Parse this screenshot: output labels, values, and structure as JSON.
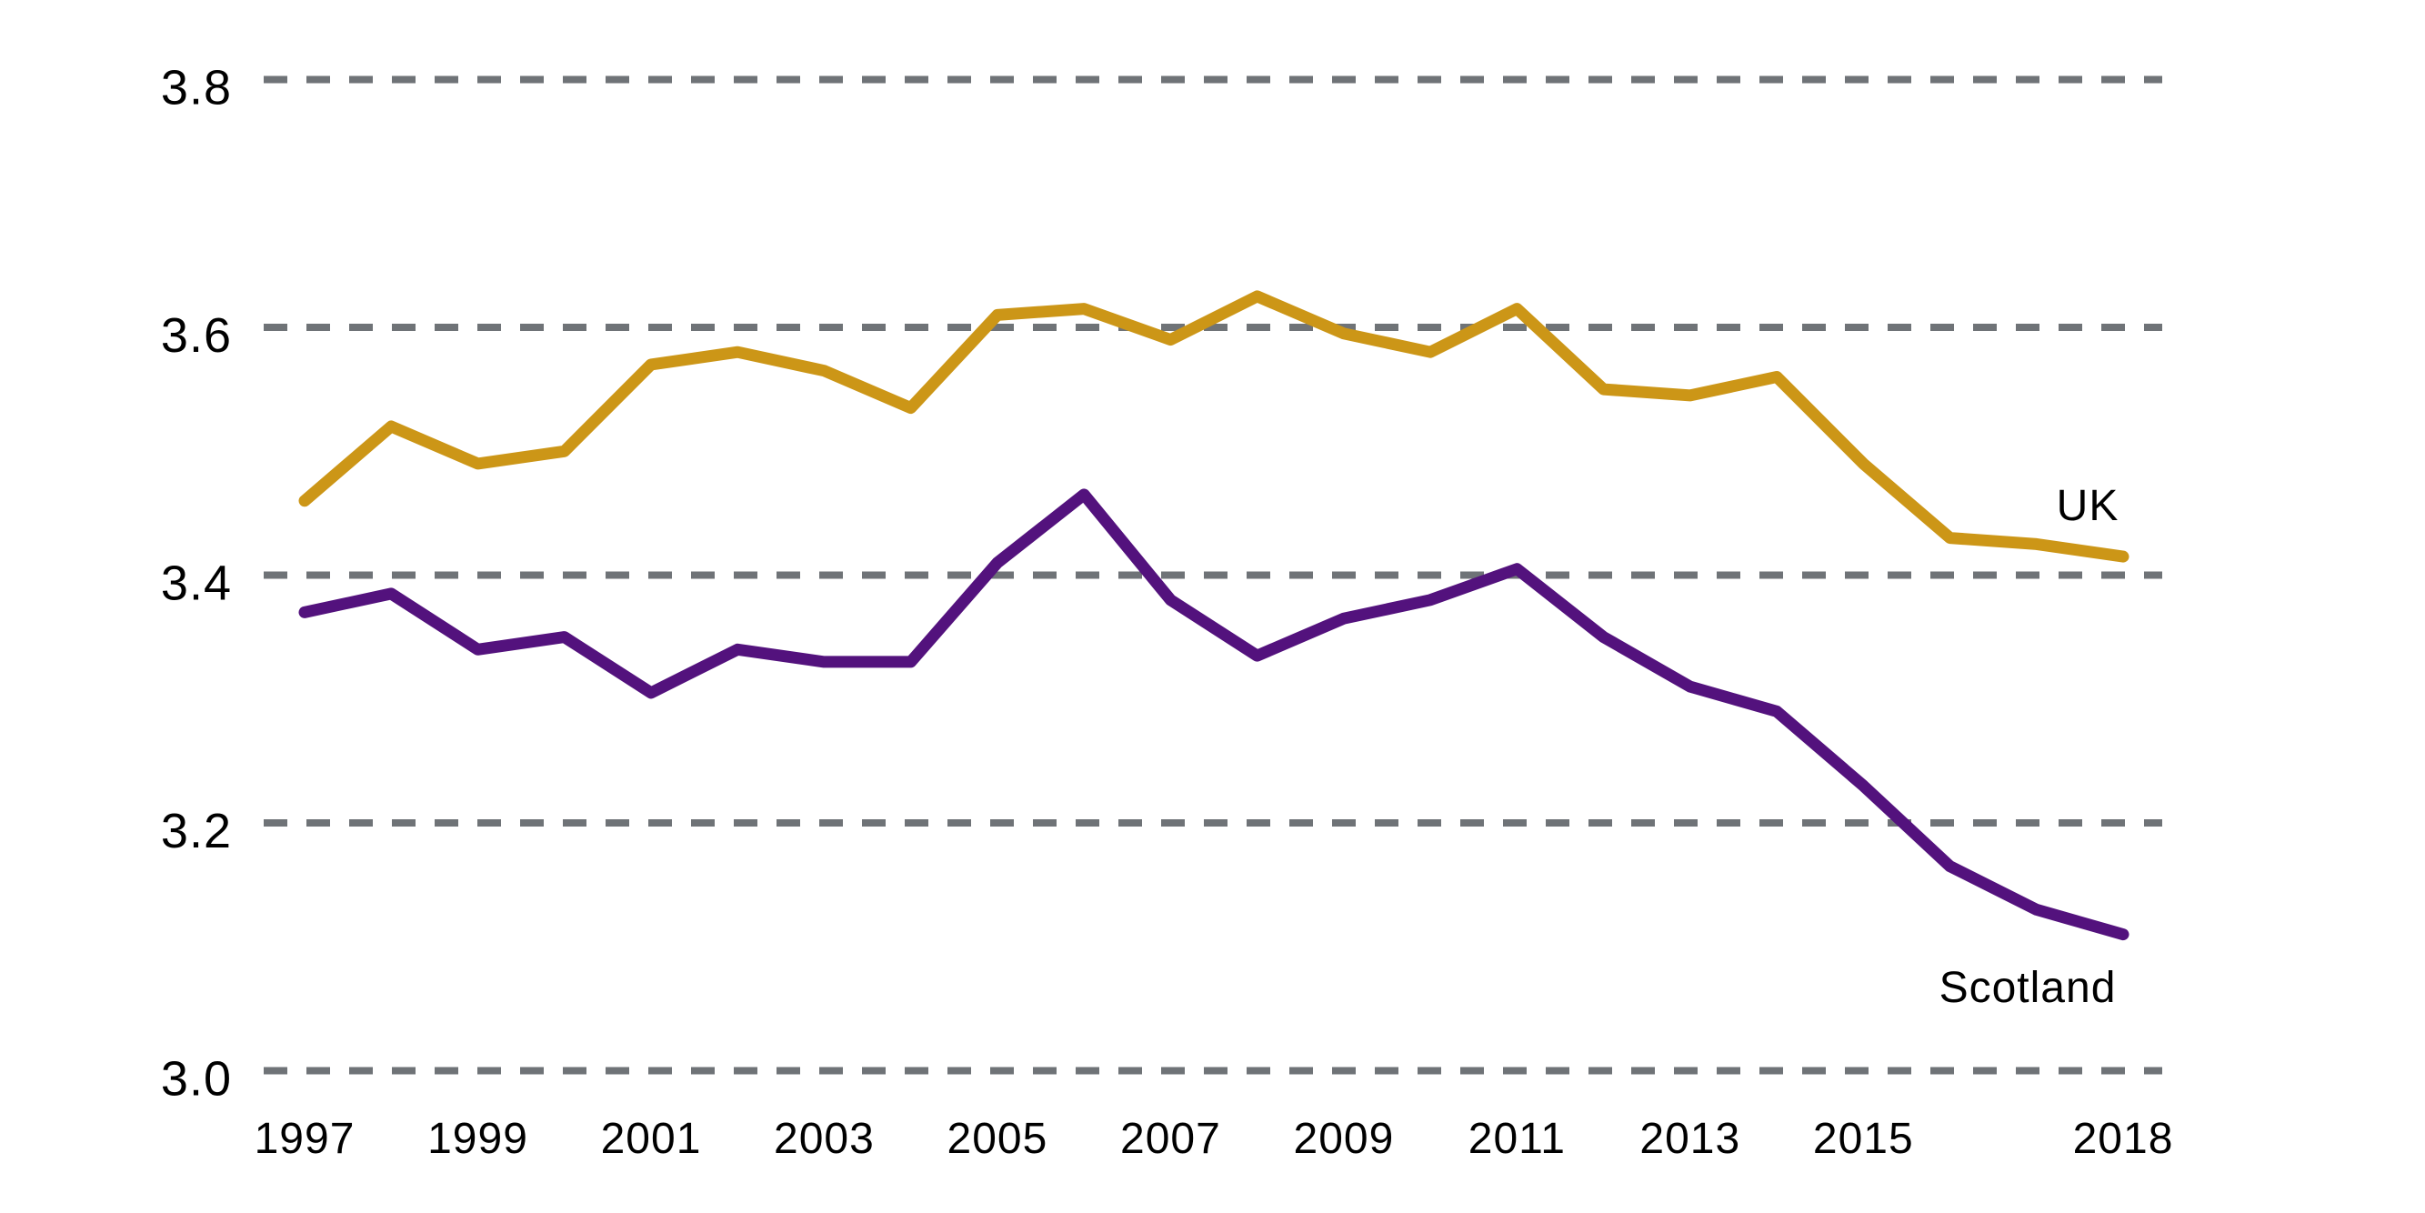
{
  "chart_data": {
    "type": "line",
    "title": "",
    "xlabel": "",
    "ylabel": "",
    "x": [
      1997,
      1998,
      1999,
      2000,
      2001,
      2002,
      2003,
      2004,
      2005,
      2006,
      2007,
      2008,
      2009,
      2010,
      2011,
      2012,
      2013,
      2014,
      2015,
      2016,
      2017,
      2018
    ],
    "series": [
      {
        "name": "UK",
        "color": "#CC9617",
        "values": [
          3.46,
          3.52,
          3.49,
          3.5,
          3.57,
          3.58,
          3.565,
          3.535,
          3.61,
          3.615,
          3.59,
          3.625,
          3.595,
          3.58,
          3.615,
          3.55,
          3.545,
          3.56,
          3.49,
          3.43,
          3.425,
          3.415
        ]
      },
      {
        "name": "Scotland",
        "color": "#53127D",
        "values": [
          3.37,
          3.385,
          3.34,
          3.35,
          3.305,
          3.34,
          3.33,
          3.33,
          3.41,
          3.465,
          3.38,
          3.335,
          3.365,
          3.38,
          3.405,
          3.35,
          3.31,
          3.29,
          3.23,
          3.165,
          3.13,
          3.11
        ]
      }
    ],
    "ylim": [
      3.0,
      3.8
    ],
    "ytick_values": [
      3.8,
      3.6,
      3.4,
      3.2,
      3.0
    ],
    "ytick_labels": [
      "3.8",
      "3.6",
      "3.4",
      "3.2",
      "3.0"
    ],
    "xtick_years": [
      1997,
      1999,
      2001,
      2003,
      2005,
      2007,
      2009,
      2011,
      2013,
      2015,
      2018
    ],
    "xtick_labels": [
      "1997",
      "1999",
      "2001",
      "2003",
      "2005",
      "2007",
      "2009",
      "2011",
      "2013",
      "2015",
      "2018"
    ],
    "grid": "horizontal-dashed",
    "gridline_color": "#6F7377",
    "text_color": "#000000",
    "background_color": "#FFFFFF",
    "legend": "inline labels near right end of each line"
  }
}
